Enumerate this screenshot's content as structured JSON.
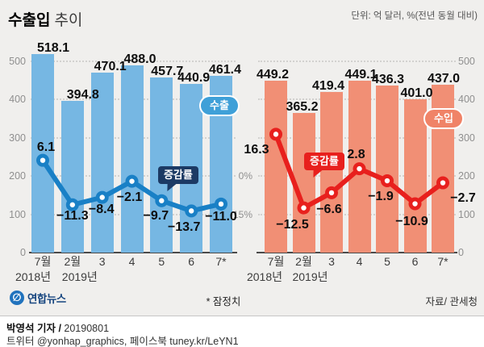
{
  "header": {
    "title_bold": "수출입",
    "title_light": "추이",
    "unit_note": "단위: 억 달러, %(전년 동월 대비)"
  },
  "chart_data": [
    {
      "type": "bar",
      "name": "exports",
      "pill_label": "수출",
      "line_callout_label": "증감률",
      "categories": [
        "7월",
        "2월",
        "3",
        "4",
        "5",
        "6",
        "7*"
      ],
      "year_markers": [
        {
          "at": 0,
          "label": "2018년"
        },
        {
          "at": 1,
          "label": "2019년"
        }
      ],
      "series": [
        {
          "name": "수출",
          "type": "bar",
          "values": [
            518.1,
            394.8,
            470.1,
            488.0,
            457.7,
            440.9,
            461.4
          ]
        },
        {
          "name": "증감률",
          "type": "line",
          "values": [
            6.1,
            -11.3,
            -8.4,
            -2.1,
            -9.7,
            -13.7,
            -11.0
          ]
        }
      ],
      "value_axis": {
        "ticks": [
          500,
          400,
          300,
          200,
          100,
          0
        ],
        "side": "left",
        "ylim": [
          0,
          520
        ]
      },
      "colors": {
        "bar": "#76b7e3",
        "line": "#1980c6",
        "callout": "#1c3a64",
        "pill": "#3fa0d8"
      }
    },
    {
      "type": "bar",
      "name": "imports",
      "pill_label": "수입",
      "line_callout_label": "증감률",
      "categories": [
        "7월",
        "2월",
        "3",
        "4",
        "5",
        "6",
        "7*"
      ],
      "year_markers": [
        {
          "at": 0,
          "label": "2018년"
        },
        {
          "at": 1,
          "label": "2019년"
        }
      ],
      "series": [
        {
          "name": "수입",
          "type": "bar",
          "values": [
            449.2,
            365.2,
            419.4,
            449.1,
            436.3,
            401.0,
            437.0
          ]
        },
        {
          "name": "증감률",
          "type": "line",
          "values": [
            16.3,
            -12.5,
            -6.6,
            2.8,
            -1.9,
            -10.9,
            -2.7
          ]
        }
      ],
      "value_axis": {
        "ticks": [
          500,
          400,
          300,
          200,
          100,
          0
        ],
        "side": "right",
        "ylim": [
          0,
          520
        ]
      },
      "colors": {
        "bar": "#f18f75",
        "line": "#e8201d",
        "callout": "#e8201d",
        "pill": "#f08367"
      }
    }
  ],
  "axes": {
    "pct_ticks": [
      {
        "label": "0%",
        "value": 0
      },
      {
        "label": "−15%",
        "value": -15
      }
    ]
  },
  "footnote": {
    "preliminary": "* 잠정치",
    "source": "자료/ 관세청"
  },
  "branding": {
    "agency": "연합뉴스"
  },
  "byline": {
    "reporter": "박영석 기자 /",
    "date": "20190801",
    "contacts": "트위터 @yonhap_graphics, 페이스북 tuney.kr/LeYN1"
  }
}
